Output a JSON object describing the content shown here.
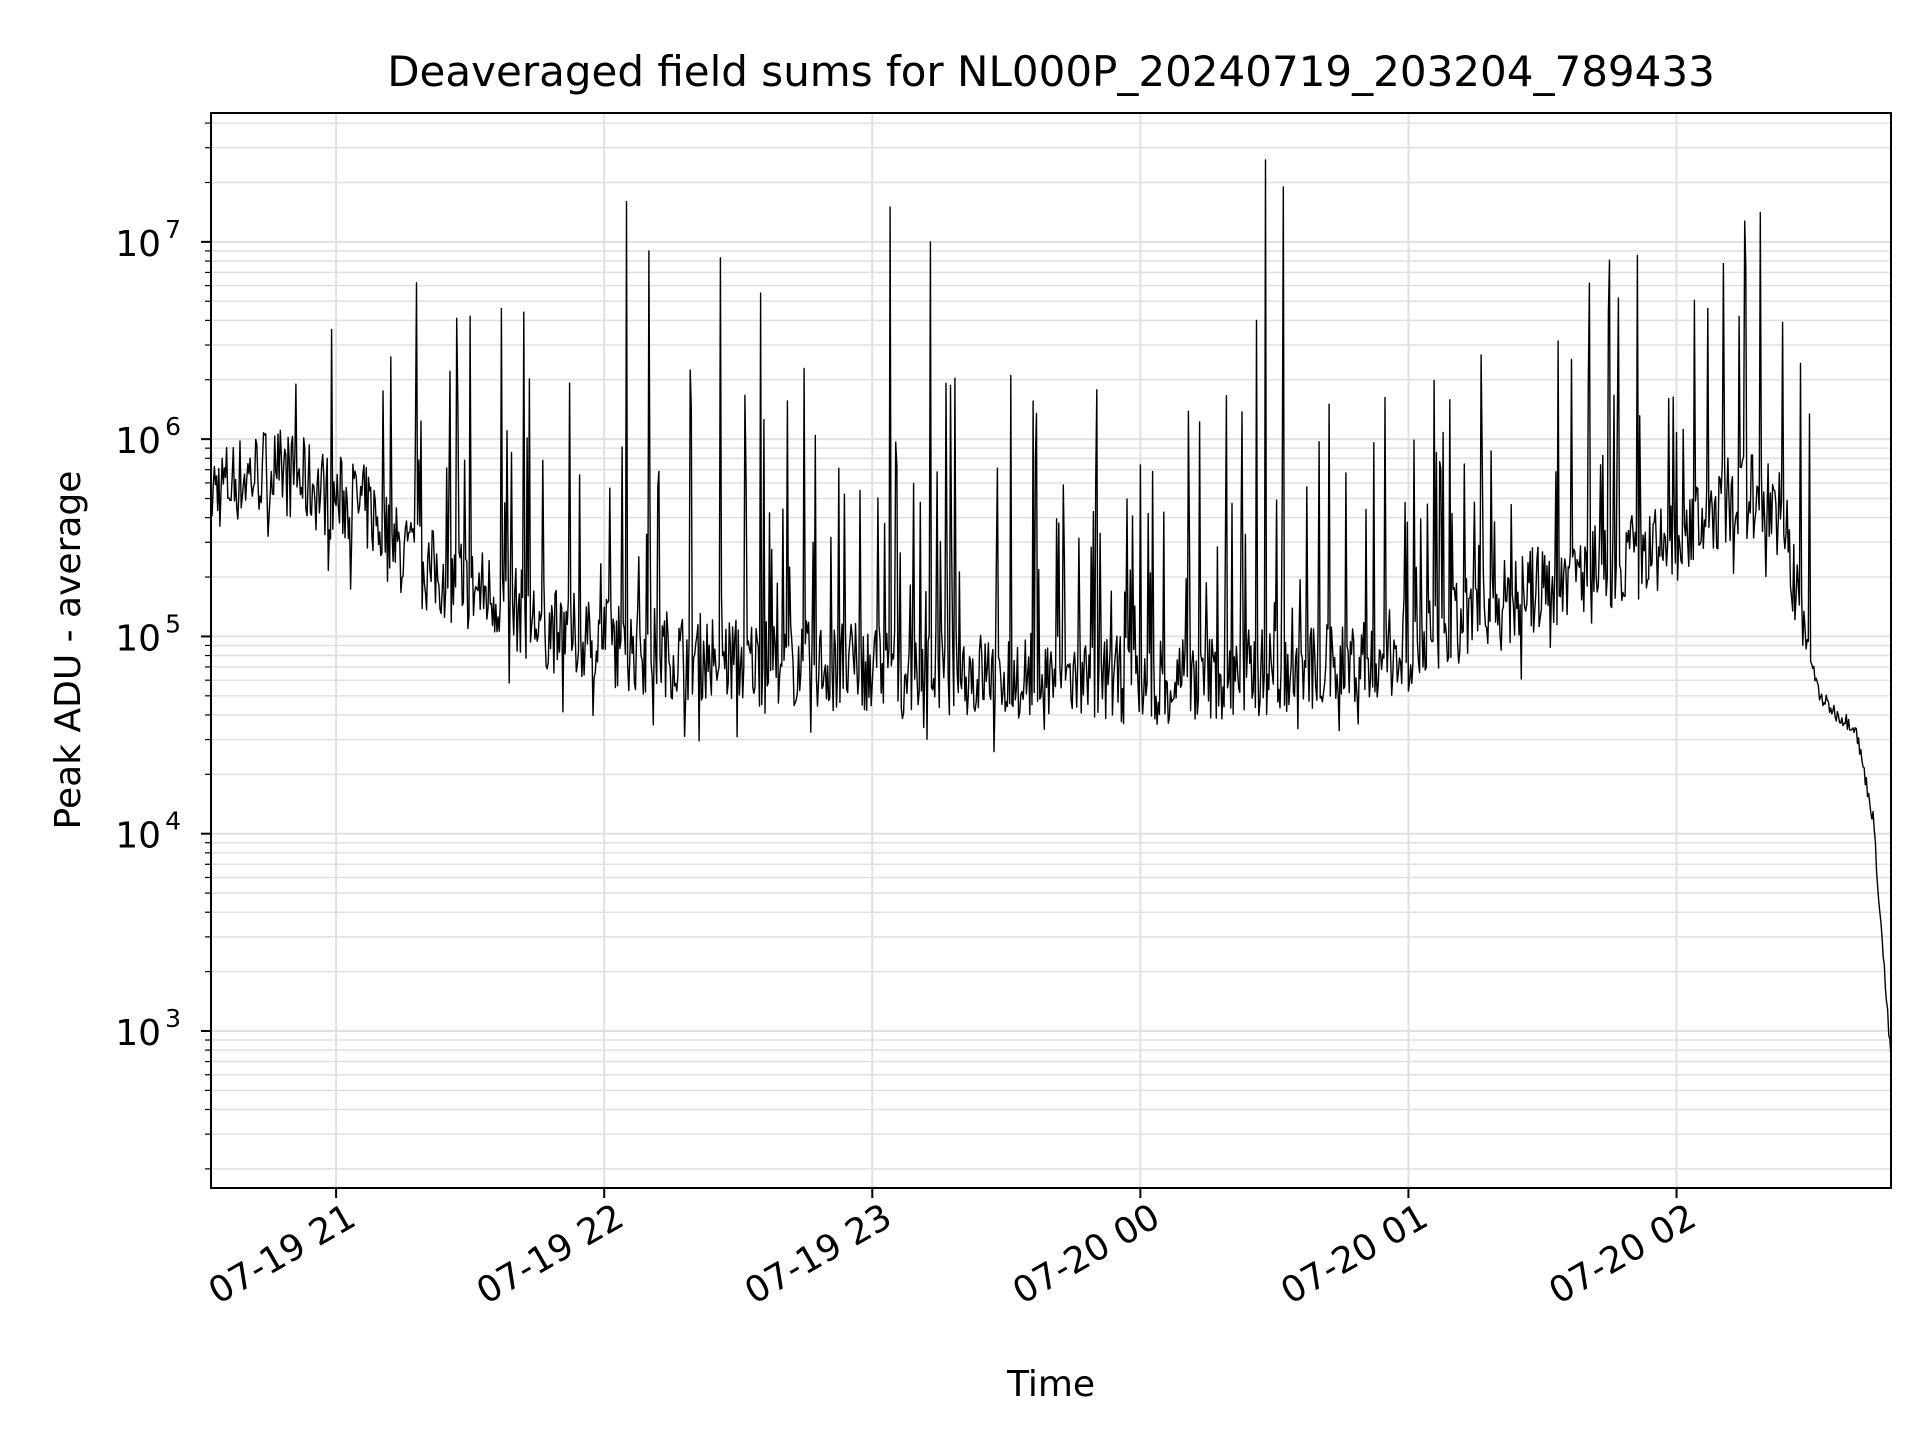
{
  "chart_data": {
    "type": "line",
    "title": "Deaveraged field sums for NL000P_20240719_203204_789433",
    "xlabel": "Time",
    "ylabel": "Peak ADU - average",
    "x_range": [
      "07-19 20:32",
      "07-20 02:48"
    ],
    "ylim": [
      160,
      45000000
    ],
    "yscale": "log",
    "grid": true,
    "line_color": "#000000",
    "grid_color": "#e0e0e0",
    "x_ticks": [
      {
        "value": "07-19 21:00",
        "label": "07-19 21"
      },
      {
        "value": "07-19 22:00",
        "label": "07-19 22"
      },
      {
        "value": "07-19 23:00",
        "label": "07-19 23"
      },
      {
        "value": "07-20 00:00",
        "label": "07-20 00"
      },
      {
        "value": "07-20 01:00",
        "label": "07-20 01"
      },
      {
        "value": "07-20 02:00",
        "label": "07-20 02"
      }
    ],
    "y_ticks": [
      {
        "value": 1000,
        "base": "10",
        "exp": "3"
      },
      {
        "value": 10000,
        "base": "10",
        "exp": "4"
      },
      {
        "value": 100000,
        "base": "10",
        "exp": "5"
      },
      {
        "value": 1000000,
        "base": "10",
        "exp": "6"
      },
      {
        "value": 10000000,
        "base": "10",
        "exp": "7"
      }
    ],
    "series": [
      {
        "x": [
          "07-19 20:32",
          "07-19 20:36",
          "07-19 20:40",
          "07-19 20:44",
          "07-19 20:48",
          "07-19 20:52",
          "07-19 20:56",
          "07-19 21:00",
          "07-19 21:04",
          "07-19 21:08",
          "07-19 21:12",
          "07-19 21:16",
          "07-19 21:20",
          "07-19 21:24",
          "07-19 21:28",
          "07-19 21:32",
          "07-19 21:36",
          "07-19 21:40",
          "07-19 21:44",
          "07-19 21:48",
          "07-19 21:52",
          "07-19 21:56",
          "07-19 22:00",
          "07-19 22:04",
          "07-19 22:08",
          "07-19 22:12",
          "07-19 22:16",
          "07-19 22:20",
          "07-19 22:24",
          "07-19 22:28",
          "07-19 22:32",
          "07-19 22:36",
          "07-19 22:40",
          "07-19 22:44",
          "07-19 22:48",
          "07-19 22:52",
          "07-19 22:56",
          "07-19 23:00",
          "07-19 23:04",
          "07-19 23:08",
          "07-19 23:12",
          "07-19 23:16",
          "07-19 23:20",
          "07-19 23:24",
          "07-19 23:28",
          "07-19 23:32",
          "07-19 23:36",
          "07-19 23:40",
          "07-19 23:44",
          "07-19 23:48",
          "07-19 23:52",
          "07-19 23:56",
          "07-20 00:00",
          "07-20 00:04",
          "07-20 00:08",
          "07-20 00:12",
          "07-20 00:16",
          "07-20 00:20",
          "07-20 00:24",
          "07-20 00:28",
          "07-20 00:32",
          "07-20 00:36",
          "07-20 00:40",
          "07-20 00:44",
          "07-20 00:48",
          "07-20 00:52",
          "07-20 00:56",
          "07-20 01:00",
          "07-20 01:04",
          "07-20 01:08",
          "07-20 01:12",
          "07-20 01:16",
          "07-20 01:20",
          "07-20 01:24",
          "07-20 01:28",
          "07-20 01:32",
          "07-20 01:36",
          "07-20 01:40",
          "07-20 01:44",
          "07-20 01:48",
          "07-20 01:52",
          "07-20 01:56",
          "07-20 02:00",
          "07-20 02:04",
          "07-20 02:08",
          "07-20 02:12",
          "07-20 02:16",
          "07-20 02:20",
          "07-20 02:24",
          "07-20 02:28",
          "07-20 02:32",
          "07-20 02:36",
          "07-20 02:40",
          "07-20 02:44",
          "07-20 02:48"
        ],
        "y": [
          550000,
          600000,
          650000,
          700000,
          680000,
          620000,
          560000,
          500000,
          480000,
          420000,
          300000,
          250000,
          220000,
          200000,
          180000,
          170000,
          160000,
          140000,
          120000,
          110000,
          100000,
          100000,
          95000,
          90000,
          85000,
          85000,
          80000,
          80000,
          78000,
          76000,
          75000,
          74000,
          73000,
          72000,
          72000,
          70000,
          70000,
          70000,
          70000,
          68000,
          68000,
          67000,
          66000,
          65000,
          65000,
          64000,
          63000,
          62000,
          62000,
          61000,
          60000,
          60000,
          60000,
          60000,
          61000,
          62000,
          63000,
          64000,
          65000,
          66000,
          67000,
          68000,
          70000,
          72000,
          75000,
          78000,
          82000,
          88000,
          95000,
          105000,
          115000,
          125000,
          140000,
          155000,
          170000,
          185000,
          200000,
          215000,
          230000,
          245000,
          260000,
          275000,
          300000,
          360000,
          430000,
          500000,
          520000,
          500000,
          400000,
          120000,
          50000,
          40000,
          35000,
          12000,
          700
        ]
      }
    ],
    "spikes": [
      {
        "x": "07-19 20:51",
        "y": 1900000
      },
      {
        "x": "07-19 20:59",
        "y": 3600000
      },
      {
        "x": "07-19 21:18",
        "y": 6200000
      },
      {
        "x": "07-19 21:27",
        "y": 4100000
      },
      {
        "x": "07-19 21:30",
        "y": 4200000
      },
      {
        "x": "07-19 21:37",
        "y": 4600000
      },
      {
        "x": "07-19 21:42",
        "y": 4400000
      },
      {
        "x": "07-19 22:05",
        "y": 16000000
      },
      {
        "x": "07-19 22:10",
        "y": 9000000
      },
      {
        "x": "07-19 22:26",
        "y": 8300000
      },
      {
        "x": "07-19 22:35",
        "y": 5500000
      },
      {
        "x": "07-19 23:04",
        "y": 15000000
      },
      {
        "x": "07-19 23:13",
        "y": 10000000
      },
      {
        "x": "07-20 00:26",
        "y": 4000000
      },
      {
        "x": "07-20 00:28",
        "y": 26000000
      },
      {
        "x": "07-20 00:32",
        "y": 19000000
      },
      {
        "x": "07-20 01:47",
        "y": 5200000
      },
      {
        "x": "07-20 02:07",
        "y": 4600000
      }
    ]
  }
}
